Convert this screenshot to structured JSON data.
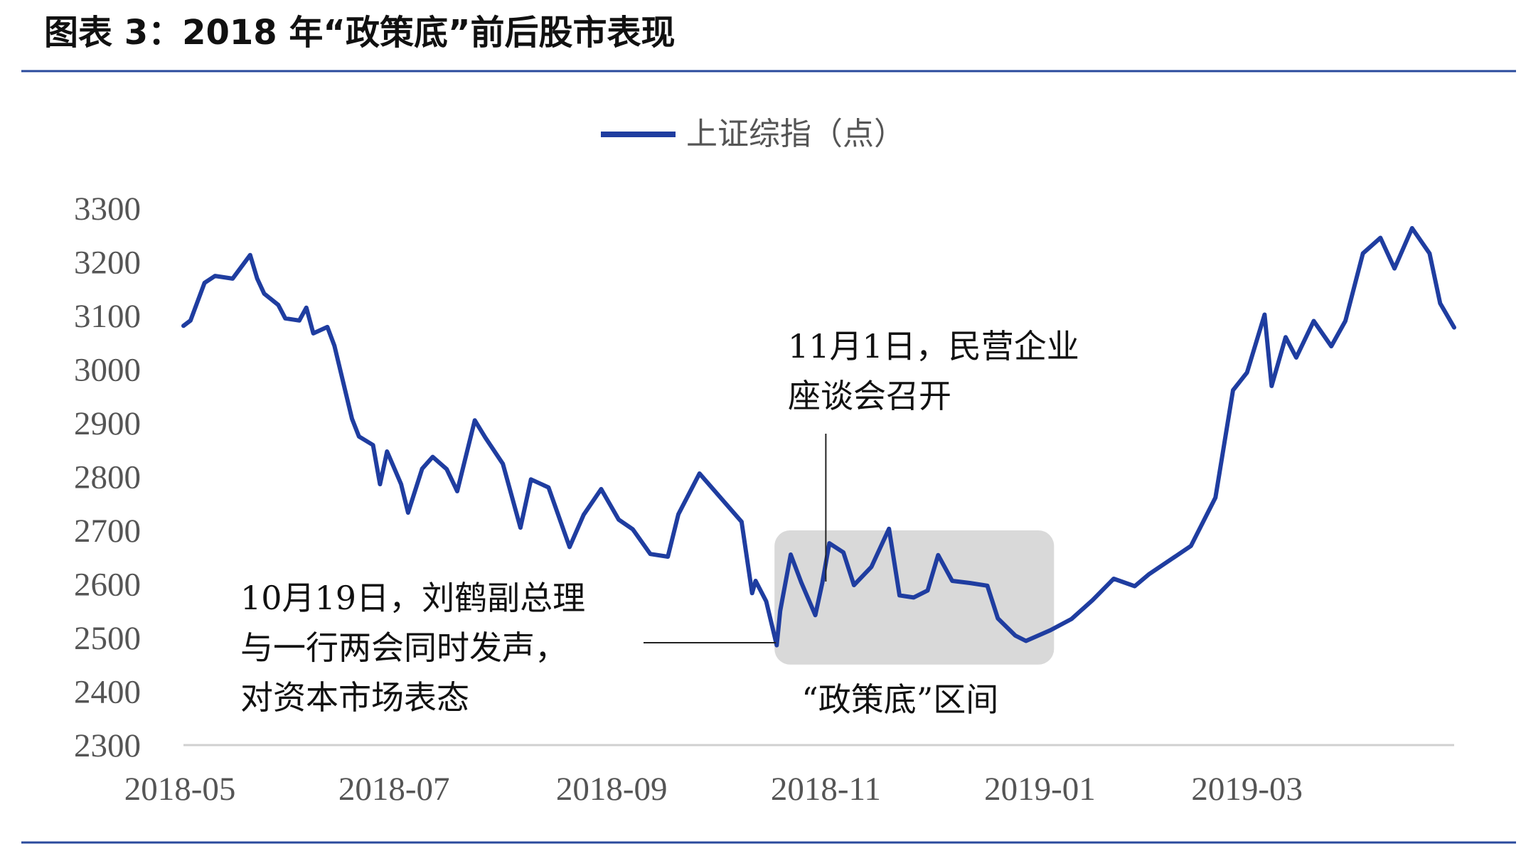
{
  "chart_data": {
    "type": "line",
    "title": "图表 3：2018 年“政策底”前后股市表现",
    "xlabel": "",
    "ylabel": "",
    "ylim": [
      2300,
      3300
    ],
    "yticks": [
      3300,
      3200,
      3100,
      3000,
      2900,
      2800,
      2700,
      2600,
      2500,
      2400,
      2300
    ],
    "xticks": [
      "2018-05",
      "2018-07",
      "2018-09",
      "2018-11",
      "2019-01",
      "2019-03"
    ],
    "legend": {
      "position": "top-center"
    },
    "grid": false,
    "highlight_range": {
      "label": "“政策底”区间",
      "x": [
        "2018-10-19",
        "2019-01-04"
      ],
      "y": [
        2450,
        2700
      ]
    },
    "annotations": [
      {
        "lines": [
          "11月1日，民营企业",
          "座谈会召开"
        ],
        "date": "2018-11-01"
      },
      {
        "lines": [
          "10月19日，刘鹤副总理",
          "与一行两会同时发声，",
          "对资本市场表态"
        ],
        "date": "2018-10-19"
      }
    ],
    "series": [
      {
        "name": "上证综指（点）",
        "color": "#1f3da0",
        "x": [
          "2018-05-02",
          "2018-05-04",
          "2018-05-08",
          "2018-05-11",
          "2018-05-16",
          "2018-05-21",
          "2018-05-23",
          "2018-05-25",
          "2018-05-29",
          "2018-05-31",
          "2018-06-04",
          "2018-06-06",
          "2018-06-08",
          "2018-06-12",
          "2018-06-14",
          "2018-06-19",
          "2018-06-21",
          "2018-06-25",
          "2018-06-27",
          "2018-06-29",
          "2018-07-03",
          "2018-07-05",
          "2018-07-09",
          "2018-07-12",
          "2018-07-16",
          "2018-07-19",
          "2018-07-24",
          "2018-07-27",
          "2018-08-01",
          "2018-08-06",
          "2018-08-09",
          "2018-08-14",
          "2018-08-20",
          "2018-08-24",
          "2018-08-29",
          "2018-09-03",
          "2018-09-07",
          "2018-09-12",
          "2018-09-17",
          "2018-09-20",
          "2018-09-26",
          "2018-10-08",
          "2018-10-11",
          "2018-10-12",
          "2018-10-15",
          "2018-10-18",
          "2018-10-19",
          "2018-10-22",
          "2018-10-25",
          "2018-10-29",
          "2018-10-31",
          "2018-11-02",
          "2018-11-06",
          "2018-11-09",
          "2018-11-14",
          "2018-11-19",
          "2018-11-22",
          "2018-11-26",
          "2018-11-30",
          "2018-12-03",
          "2018-12-07",
          "2018-12-12",
          "2018-12-17",
          "2018-12-20",
          "2018-12-25",
          "2018-12-28",
          "2019-01-04",
          "2019-01-10",
          "2019-01-16",
          "2019-01-22",
          "2019-01-28",
          "2019-02-01",
          "2019-02-13",
          "2019-02-20",
          "2019-02-25",
          "2019-03-01",
          "2019-03-06",
          "2019-03-08",
          "2019-03-12",
          "2019-03-15",
          "2019-03-20",
          "2019-03-25",
          "2019-03-29",
          "2019-04-03",
          "2019-04-08",
          "2019-04-12",
          "2019-04-17",
          "2019-04-22",
          "2019-04-25",
          "2019-04-29"
        ],
        "values": [
          3081,
          3091,
          3161,
          3174,
          3169,
          3213,
          3169,
          3141,
          3120,
          3095,
          3091,
          3115,
          3067,
          3079,
          3044,
          2908,
          2875,
          2859,
          2786,
          2847,
          2786,
          2733,
          2815,
          2837,
          2814,
          2773,
          2905,
          2873,
          2824,
          2705,
          2795,
          2780,
          2669,
          2729,
          2777,
          2720,
          2702,
          2656,
          2651,
          2730,
          2806,
          2716,
          2583,
          2606,
          2568,
          2486,
          2550,
          2655,
          2603,
          2542,
          2602,
          2676,
          2659,
          2598,
          2632,
          2703,
          2579,
          2575,
          2588,
          2654,
          2606,
          2602,
          2597,
          2536,
          2504,
          2494,
          2514,
          2535,
          2570,
          2610,
          2596,
          2618,
          2671,
          2761,
          2961,
          2994,
          3102,
          2969,
          3060,
          3022,
          3090,
          3043,
          3090,
          3216,
          3245,
          3188,
          3263,
          3216,
          3123,
          3078
        ]
      }
    ]
  }
}
